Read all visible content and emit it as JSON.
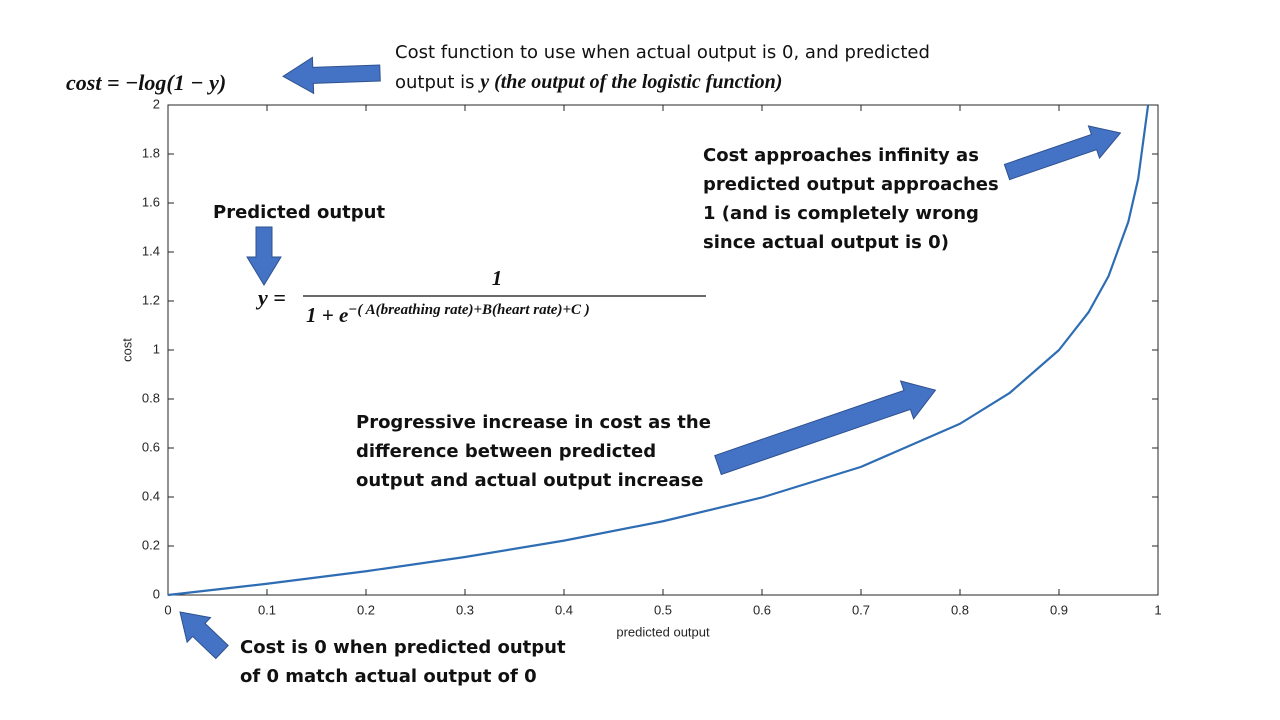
{
  "chart_data": {
    "type": "line",
    "xlabel": "predicted output",
    "ylabel": "cost",
    "x": [
      0,
      0.1,
      0.2,
      0.3,
      0.4,
      0.5,
      0.6,
      0.7,
      0.8,
      0.85,
      0.9,
      0.93,
      0.95,
      0.97,
      0.98,
      0.99
    ],
    "values": [
      0,
      0.046,
      0.097,
      0.155,
      0.222,
      0.301,
      0.398,
      0.523,
      0.699,
      0.824,
      1,
      1.155,
      1.301,
      1.523,
      1.699,
      2
    ],
    "color": "#2e6db4",
    "xlim": [
      0,
      1
    ],
    "ylim": [
      0,
      2
    ],
    "xticks": [
      0,
      0.1,
      0.2,
      0.3,
      0.4,
      0.5,
      0.6,
      0.7,
      0.8,
      0.9,
      1
    ],
    "yticks": [
      0,
      0.2,
      0.4,
      0.6,
      0.8,
      1,
      1.2,
      1.4,
      1.6,
      1.8,
      2
    ],
    "grid": false,
    "annotations": {
      "cost_formula": "cost = −log(1 − y)",
      "top_note": [
        "Cost function to use when actual output is 0, and predicted",
        "output is ",
        "y (the output of the logistic function)"
      ],
      "predicted_output": "Predicted output",
      "logistic": {
        "lhs": "y =",
        "numerator": "1",
        "base": "1 + e",
        "exponent": "−( A(breathing rate)+B(heart rate)+C )"
      },
      "infinity_note": [
        "Cost approaches infinity as",
        "predicted output approaches",
        "1 (and is completely wrong",
        "since actual output is 0)"
      ],
      "progressive_note": [
        "Progressive increase in cost as the",
        "difference between predicted",
        "output and actual output increase"
      ],
      "zero_note": [
        "Cost is 0 when predicted output",
        "of 0 match actual output of 0"
      ]
    }
  }
}
